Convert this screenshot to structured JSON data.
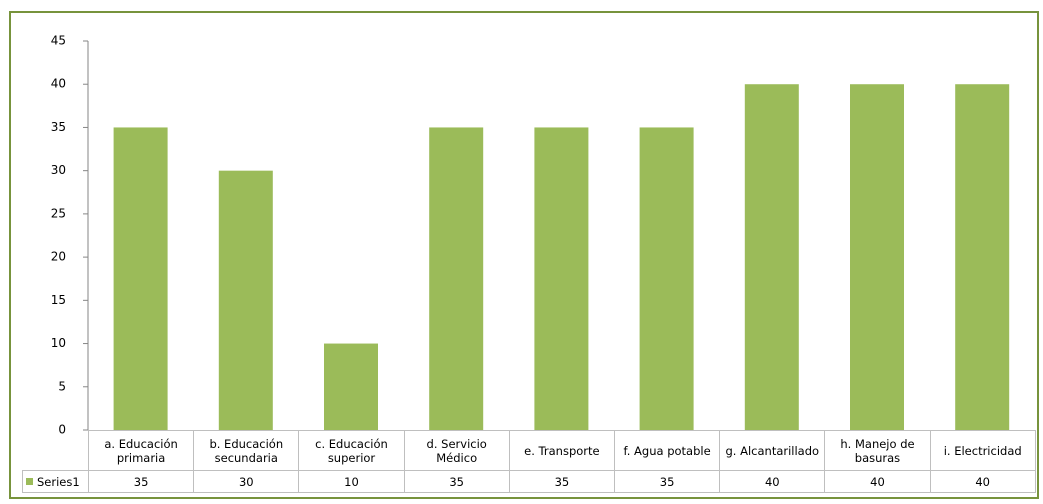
{
  "chart_data": {
    "type": "bar",
    "categories": [
      "a. Educación primaria",
      "b. Educación secundaria",
      "c. Educación superior",
      "d. Servicio Médico",
      "e. Transporte",
      "f. Agua potable",
      "g. Alcantarillado",
      "h. Manejo de basuras",
      "i. Electricidad"
    ],
    "series": [
      {
        "name": "Series1",
        "color": "#9bbb59",
        "values": [
          35,
          30,
          10,
          35,
          35,
          35,
          40,
          40,
          40
        ]
      }
    ],
    "ylim": [
      0,
      45
    ],
    "yticks": [
      0,
      5,
      10,
      15,
      20,
      25,
      30,
      35,
      40,
      45
    ],
    "grid": false
  }
}
